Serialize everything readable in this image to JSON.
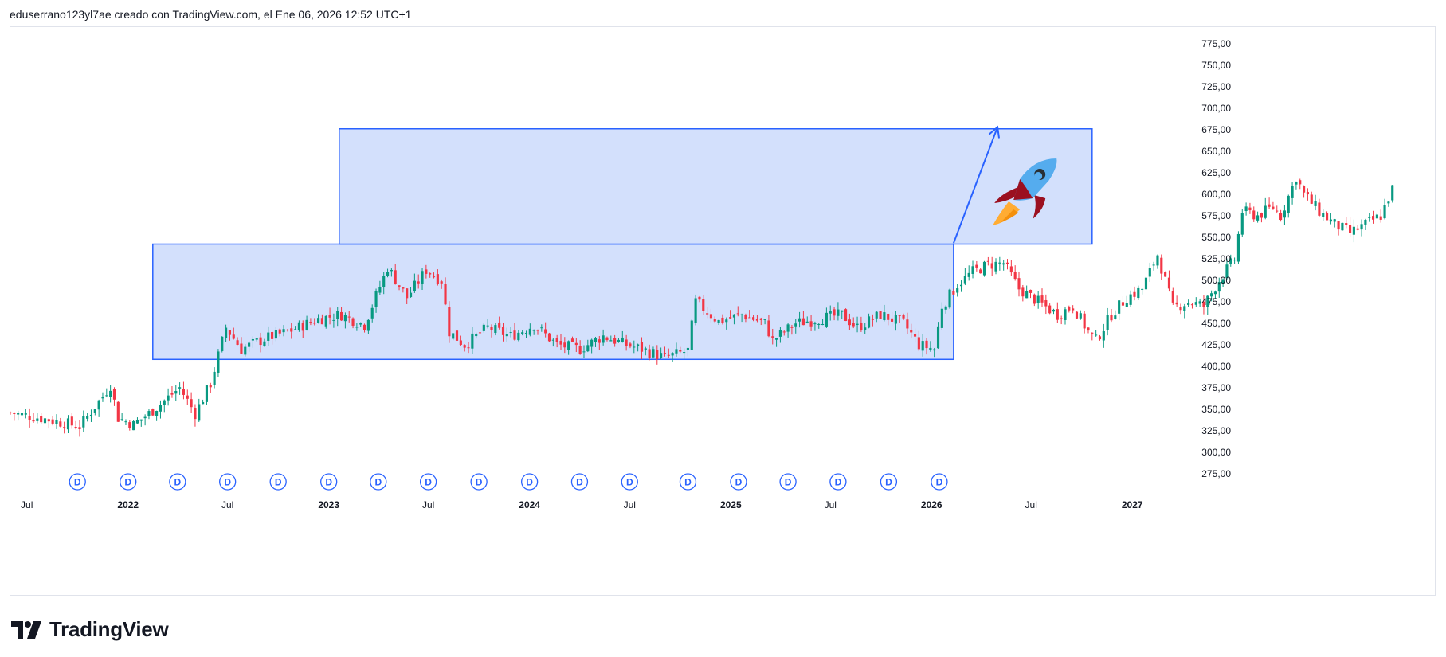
{
  "header": {
    "attribution": "eduserrano123yl7ae creado con TradingView.com, el Ene 06, 2026 12:52 UTC+1"
  },
  "brand": {
    "name": "TradingView",
    "icon": "tradingview-logo-icon"
  },
  "colors": {
    "up": "#089981",
    "down": "#f23645",
    "box_fill": "#d3e0fc",
    "box_stroke": "#2962ff",
    "accent": "#2962ff"
  },
  "chart_data": {
    "type": "candlestick",
    "y_axis": {
      "min": 262,
      "max": 785,
      "ticks": [
        275,
        300,
        325,
        350,
        375,
        400,
        425,
        450,
        475,
        500,
        525,
        550,
        575,
        600,
        625,
        650,
        675,
        700,
        725,
        750,
        775
      ],
      "tick_labels": [
        "275,00",
        "300,00",
        "325,00",
        "350,00",
        "375,00",
        "400,00",
        "425,00",
        "450,00",
        "475,00",
        "500,00",
        "525,00",
        "550,00",
        "575,00",
        "600,00",
        "625,00",
        "650,00",
        "675,00",
        "700,00",
        "725,00",
        "750,00",
        "775,00"
      ]
    },
    "x_axis": {
      "range": [
        "2021-06-01",
        "2027-04-15"
      ],
      "labels": [
        {
          "date": "2021-07-01",
          "text": "Jul",
          "year": false
        },
        {
          "date": "2022-01-01",
          "text": "2022",
          "year": true
        },
        {
          "date": "2022-07-01",
          "text": "Jul",
          "year": false
        },
        {
          "date": "2023-01-01",
          "text": "2023",
          "year": true
        },
        {
          "date": "2023-07-01",
          "text": "Jul",
          "year": false
        },
        {
          "date": "2024-01-01",
          "text": "2024",
          "year": true
        },
        {
          "date": "2024-07-01",
          "text": "Jul",
          "year": false
        },
        {
          "date": "2025-01-01",
          "text": "2025",
          "year": true
        },
        {
          "date": "2025-07-01",
          "text": "Jul",
          "year": false
        },
        {
          "date": "2026-01-01",
          "text": "2026",
          "year": true
        },
        {
          "date": "2026-07-01",
          "text": "Jul",
          "year": false
        },
        {
          "date": "2027-01-01",
          "text": "2027",
          "year": true
        }
      ]
    },
    "candles": {
      "start": "2021-06-01",
      "interval_days": 7,
      "key_prices": [
        [
          0,
          346
        ],
        [
          10,
          338
        ],
        [
          18,
          330
        ],
        [
          24,
          365
        ],
        [
          26,
          378
        ],
        [
          28,
          340
        ],
        [
          32,
          332
        ],
        [
          36,
          345
        ],
        [
          40,
          360
        ],
        [
          44,
          375
        ],
        [
          48,
          345
        ],
        [
          52,
          380
        ],
        [
          56,
          445
        ],
        [
          60,
          420
        ],
        [
          66,
          432
        ],
        [
          72,
          440
        ],
        [
          80,
          455
        ],
        [
          86,
          460
        ],
        [
          92,
          448
        ],
        [
          98,
          515
        ],
        [
          103,
          480
        ],
        [
          108,
          512
        ],
        [
          112,
          500
        ],
        [
          114,
          440
        ],
        [
          118,
          425
        ],
        [
          124,
          445
        ],
        [
          130,
          435
        ],
        [
          136,
          448
        ],
        [
          142,
          425
        ],
        [
          148,
          420
        ],
        [
          154,
          435
        ],
        [
          160,
          425
        ],
        [
          164,
          420
        ],
        [
          170,
          410
        ],
        [
          176,
          418
        ],
        [
          178,
          475
        ],
        [
          184,
          452
        ],
        [
          190,
          460
        ],
        [
          196,
          450
        ],
        [
          198,
          430
        ],
        [
          204,
          450
        ],
        [
          210,
          455
        ],
        [
          216,
          460
        ],
        [
          220,
          445
        ],
        [
          226,
          460
        ],
        [
          232,
          450
        ],
        [
          236,
          425
        ],
        [
          240,
          420
        ],
        [
          242,
          470
        ],
        [
          246,
          495
        ],
        [
          250,
          510
        ],
        [
          254,
          518
        ],
        [
          258,
          520
        ],
        [
          262,
          490
        ],
        [
          266,
          478
        ],
        [
          272,
          460
        ],
        [
          276,
          470
        ],
        [
          280,
          440
        ],
        [
          282,
          430
        ],
        [
          286,
          460
        ],
        [
          290,
          480
        ],
        [
          294,
          490
        ],
        [
          298,
          530
        ],
        [
          302,
          468
        ],
        [
          306,
          475
        ],
        [
          310,
          470
        ],
        [
          314,
          500
        ],
        [
          318,
          525
        ],
        [
          320,
          580
        ],
        [
          324,
          575
        ],
        [
          328,
          585
        ],
        [
          330,
          575
        ],
        [
          334,
          620
        ],
        [
          336,
          600
        ],
        [
          340,
          580
        ],
        [
          344,
          565
        ],
        [
          348,
          555
        ],
        [
          352,
          565
        ],
        [
          356,
          575
        ],
        [
          359,
          606
        ]
      ]
    },
    "boxes": [
      {
        "from": "2022-02-15",
        "to": "2026-02-10",
        "top": 542,
        "bottom": 408
      },
      {
        "from": "2023-01-20",
        "to": "2026-10-20",
        "top": 676,
        "bottom": 542
      }
    ],
    "arrow": {
      "from_date": "2026-02-10",
      "from_price": 543,
      "to_date": "2026-05-01",
      "to_price": 678
    },
    "dividend_markers": {
      "label": "D",
      "dates": [
        "2021-10-01",
        "2022-01-01",
        "2022-04-01",
        "2022-07-01",
        "2022-10-01",
        "2023-01-01",
        "2023-04-01",
        "2023-07-01",
        "2023-10-01",
        "2024-01-01",
        "2024-04-01",
        "2024-07-01",
        "2024-10-15",
        "2025-01-15",
        "2025-04-15",
        "2025-07-15",
        "2025-10-15",
        "2026-01-15"
      ]
    },
    "rocket": {
      "date": "2026-07-01",
      "price": 610,
      "icon": "rocket-icon"
    }
  }
}
